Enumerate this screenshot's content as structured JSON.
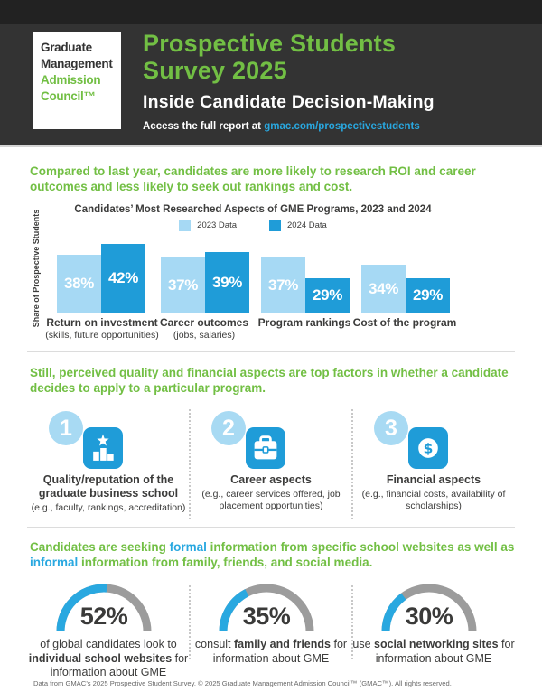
{
  "header": {
    "logo_lines": [
      "Graduate",
      "Management",
      "Admission",
      "Council™"
    ],
    "title_line1": "Prospective Students",
    "title_line2": "Survey 2025",
    "subtitle": "Inside Candidate Decision-Making",
    "access_prefix": "Access the full report at ",
    "access_link": "gmac.com/prospectivestudents"
  },
  "section1": {
    "heading": "Compared to last year, candidates are more likely to research ROI and career outcomes and less likely to seek out rankings and cost."
  },
  "chart_data": [
    {
      "type": "bar",
      "title": "Candidates’ Most Researched Aspects of GME Programs, 2023 and 2024",
      "ylabel": "Share of Prospective Students",
      "xlabel": "",
      "unit": "%",
      "legend_position": "top",
      "categories": [
        "Return on investment",
        "Career outcomes",
        "Program rankings",
        "Cost of the program"
      ],
      "category_sublabels": [
        "(skills, future opportunities)",
        "(jobs, salaries)",
        "",
        ""
      ],
      "series": [
        {
          "name": "2023 Data",
          "color": "#a6d9f4",
          "values": [
            38,
            37,
            37,
            34
          ],
          "labels": [
            "38%",
            "37%",
            "37%",
            "34%"
          ]
        },
        {
          "name": "2024 Data",
          "color": "#1f9cd8",
          "values": [
            42,
            39,
            29,
            29
          ],
          "labels": [
            "42%",
            "39%",
            "29%",
            "29%"
          ]
        }
      ]
    },
    {
      "type": "gauge",
      "title": "Information sources",
      "values": [
        52,
        35,
        30
      ],
      "labels": [
        "individual school websites",
        "family and friends",
        "social networking sites"
      ],
      "range": [
        0,
        100
      ]
    }
  ],
  "section2": {
    "heading": "Still, perceived quality and financial aspects are top factors in whether a candidate decides to apply to a particular program.",
    "items": [
      {
        "number": "1",
        "icon": "podium-star-icon",
        "title": "Quality/reputation of the graduate business school",
        "detail": "(e.g., faculty, rankings, accreditation)"
      },
      {
        "number": "2",
        "icon": "briefcase-icon",
        "title": "Career aspects",
        "detail": "(e.g., career services offered, job placement opportunities)"
      },
      {
        "number": "3",
        "icon": "dollar-icon",
        "title": "Financial aspects",
        "detail": "(e.g., financial costs, availability of scholarships)"
      }
    ]
  },
  "section3": {
    "heading_parts": [
      "Candidates are seeking ",
      "formal",
      " information from specific school websites as well as ",
      "informal",
      " information from family, friends, and social media."
    ],
    "gauges": [
      {
        "value": 52,
        "display": "52%",
        "label_pre": "of global candidates look to ",
        "label_bold": "individual school websites",
        "label_post": " for information about GME"
      },
      {
        "value": 35,
        "display": "35%",
        "label_pre": "consult ",
        "label_bold": "family and friends",
        "label_post": " for information about GME"
      },
      {
        "value": 30,
        "display": "30%",
        "label_pre": "use ",
        "label_bold": "social networking sites",
        "label_post": " for information about GME"
      }
    ]
  },
  "footer": {
    "text": "Data from GMAC’s 2025 Prospective Student Survey. © 2025 Graduate Management Admission Council™ (GMAC™). All rights reserved."
  },
  "colors": {
    "green": "#72bf44",
    "blue_2024": "#1f9cd8",
    "light_blue_2023": "#a6d9f4",
    "cyan_link": "#29a8e0",
    "header_dark": "#333333",
    "gauge_gray": "#9c9c9c",
    "text_dark": "#3c3c3b"
  }
}
